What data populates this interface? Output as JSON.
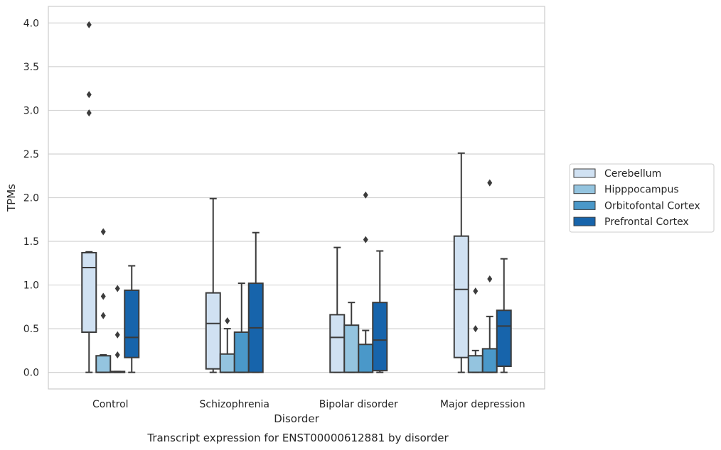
{
  "chart_data": {
    "type": "box",
    "title": "",
    "caption": "Transcript expression for ENST00000612881 by disorder",
    "xlabel": "Disorder",
    "ylabel": "TPMs",
    "ylim": [
      -0.19,
      4.19
    ],
    "yticks": [
      0.0,
      0.5,
      1.0,
      1.5,
      2.0,
      2.5,
      3.0,
      3.5,
      4.0
    ],
    "ytick_labels": [
      "0.0",
      "0.5",
      "1.0",
      "1.5",
      "2.0",
      "2.5",
      "3.0",
      "3.5",
      "4.0"
    ],
    "grid": true,
    "legend_position": "right",
    "categories": [
      "Control",
      "Schizophrenia",
      "Bipolar disorder",
      "Major depression"
    ],
    "series": [
      {
        "name": "Cerebellum",
        "color": "#d0e1f2",
        "boxes": [
          {
            "whislo": 0.0,
            "q1": 0.46,
            "med": 1.2,
            "q3": 1.37,
            "whishi": 1.38,
            "fliers": [
              2.97,
              3.18,
              3.98
            ]
          },
          {
            "whislo": 0.0,
            "q1": 0.04,
            "med": 0.56,
            "q3": 0.91,
            "whishi": 1.99,
            "fliers": []
          },
          {
            "whislo": 0.0,
            "q1": 0.0,
            "med": 0.4,
            "q3": 0.66,
            "whishi": 1.43,
            "fliers": []
          },
          {
            "whislo": 0.0,
            "q1": 0.17,
            "med": 0.95,
            "q3": 1.56,
            "whishi": 2.51,
            "fliers": []
          }
        ]
      },
      {
        "name": "Hipppocampus",
        "color": "#94c4df",
        "boxes": [
          {
            "whislo": 0.0,
            "q1": 0.0,
            "med": 0.0,
            "q3": 0.19,
            "whishi": 0.2,
            "fliers": [
              0.65,
              0.87,
              1.61
            ]
          },
          {
            "whislo": 0.0,
            "q1": 0.0,
            "med": 0.0,
            "q3": 0.21,
            "whishi": 0.5,
            "fliers": [
              0.59
            ]
          },
          {
            "whislo": 0.0,
            "q1": 0.0,
            "med": 0.0,
            "q3": 0.54,
            "whishi": 0.8,
            "fliers": []
          },
          {
            "whislo": 0.0,
            "q1": 0.0,
            "med": 0.0,
            "q3": 0.19,
            "whishi": 0.25,
            "fliers": [
              0.5,
              0.93
            ]
          }
        ]
      },
      {
        "name": "Orbitofontal Cortex",
        "color": "#4a98c9",
        "boxes": [
          {
            "whislo": 0.0,
            "q1": 0.0,
            "med": 0.0,
            "q3": 0.01,
            "whishi": 0.01,
            "fliers": [
              0.2,
              0.43,
              0.96
            ]
          },
          {
            "whislo": 0.0,
            "q1": 0.0,
            "med": 0.0,
            "q3": 0.46,
            "whishi": 1.02,
            "fliers": []
          },
          {
            "whislo": 0.0,
            "q1": 0.0,
            "med": 0.0,
            "q3": 0.32,
            "whishi": 0.48,
            "fliers": [
              1.52,
              2.03
            ]
          },
          {
            "whislo": 0.0,
            "q1": 0.0,
            "med": 0.0,
            "q3": 0.27,
            "whishi": 0.64,
            "fliers": [
              1.07,
              2.17
            ]
          }
        ]
      },
      {
        "name": "Prefrontal Cortex",
        "color": "#1764ab",
        "boxes": [
          {
            "whislo": 0.0,
            "q1": 0.17,
            "med": 0.4,
            "q3": 0.94,
            "whishi": 1.22,
            "fliers": []
          },
          {
            "whislo": 0.0,
            "q1": 0.0,
            "med": 0.51,
            "q3": 1.02,
            "whishi": 1.6,
            "fliers": []
          },
          {
            "whislo": 0.0,
            "q1": 0.02,
            "med": 0.37,
            "q3": 0.8,
            "whishi": 1.39,
            "fliers": []
          },
          {
            "whislo": 0.0,
            "q1": 0.07,
            "med": 0.53,
            "q3": 0.71,
            "whishi": 1.3,
            "fliers": []
          }
        ]
      }
    ]
  }
}
